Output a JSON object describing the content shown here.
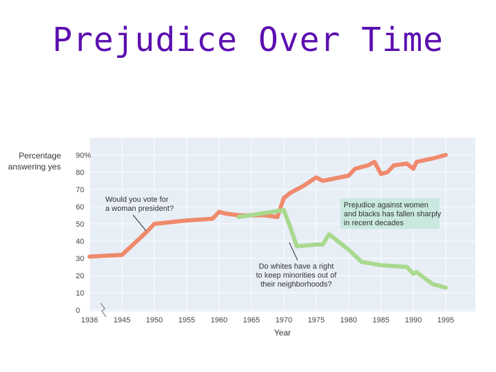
{
  "slide": {
    "title": "Prejudice Over Time"
  },
  "chart_data": {
    "type": "line",
    "title": "",
    "xlabel": "Year",
    "ylabel": [
      "Percentage",
      "answering yes"
    ],
    "x_ticks": [
      "1936",
      "1945",
      "1950",
      "1955",
      "1960",
      "1965",
      "1970",
      "1975",
      "1980",
      "1985",
      "1990",
      "1995"
    ],
    "y_ticks": [
      "0",
      "10",
      "20",
      "30",
      "40",
      "50",
      "60",
      "70",
      "80",
      "90%"
    ],
    "ylim": [
      0,
      90
    ],
    "grid": true,
    "series": [
      {
        "name": "Would you vote for a woman president?",
        "color": "#ef8a6c",
        "points": [
          [
            1936,
            31
          ],
          [
            1945,
            32
          ],
          [
            1947,
            39
          ],
          [
            1949,
            46
          ],
          [
            1950,
            50
          ],
          [
            1955,
            52
          ],
          [
            1959,
            53
          ],
          [
            1960,
            57
          ],
          [
            1961,
            56
          ],
          [
            1963,
            55
          ],
          [
            1967,
            55
          ],
          [
            1969,
            54
          ],
          [
            1970,
            65
          ],
          [
            1971,
            68
          ],
          [
            1973,
            72
          ],
          [
            1975,
            77
          ],
          [
            1976,
            75
          ],
          [
            1980,
            78
          ],
          [
            1981,
            82
          ],
          [
            1983,
            84
          ],
          [
            1984,
            86
          ],
          [
            1985,
            79
          ],
          [
            1986,
            80
          ],
          [
            1987,
            84
          ],
          [
            1989,
            85
          ],
          [
            1990,
            82
          ],
          [
            1990.5,
            86
          ],
          [
            1993,
            88
          ],
          [
            1995,
            90
          ]
        ]
      },
      {
        "name": "Do whites have a right to keep minorities out of their neighborhoods?",
        "color": "#a9d98e",
        "points": [
          [
            1963,
            54
          ],
          [
            1970,
            58
          ],
          [
            1971,
            48
          ],
          [
            1972,
            37
          ],
          [
            1975,
            38
          ],
          [
            1976,
            38
          ],
          [
            1977,
            44
          ],
          [
            1978,
            41
          ],
          [
            1980,
            35
          ],
          [
            1982,
            28
          ],
          [
            1985,
            26
          ],
          [
            1989,
            25
          ],
          [
            1990,
            21
          ],
          [
            1990.5,
            22
          ],
          [
            1993,
            15
          ],
          [
            1995,
            13
          ]
        ]
      }
    ],
    "annotations": {
      "woman_president": [
        "Would you vote for",
        "a woman president?"
      ],
      "whites_right": [
        "Do whites have a right",
        "to keep minorities out of",
        "their neighborhoods?"
      ],
      "summary_box": [
        "Prejudice against women",
        "and blacks has fallen sharply",
        "in recent decades"
      ]
    }
  }
}
